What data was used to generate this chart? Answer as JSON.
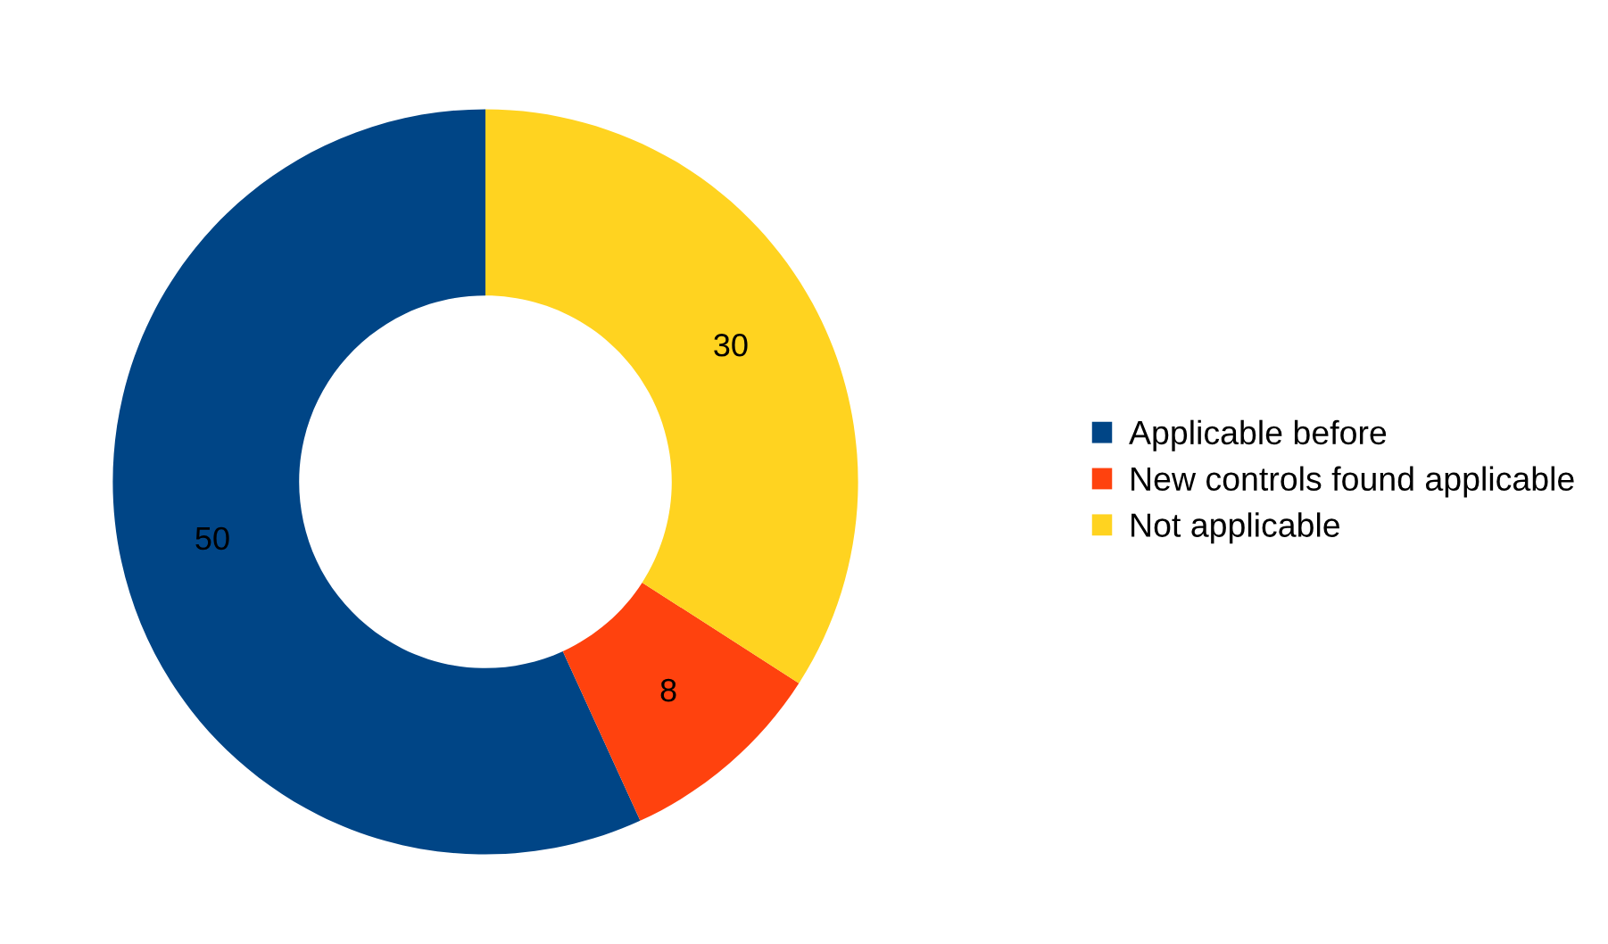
{
  "chart_data": {
    "type": "donut",
    "categories": [
      "Applicable before",
      "New controls found applicable",
      "Not applicable"
    ],
    "values": [
      50,
      8,
      30
    ],
    "colors": [
      "#004586",
      "#ff420e",
      "#ffd320"
    ],
    "data_labels": true,
    "legend": "right"
  }
}
